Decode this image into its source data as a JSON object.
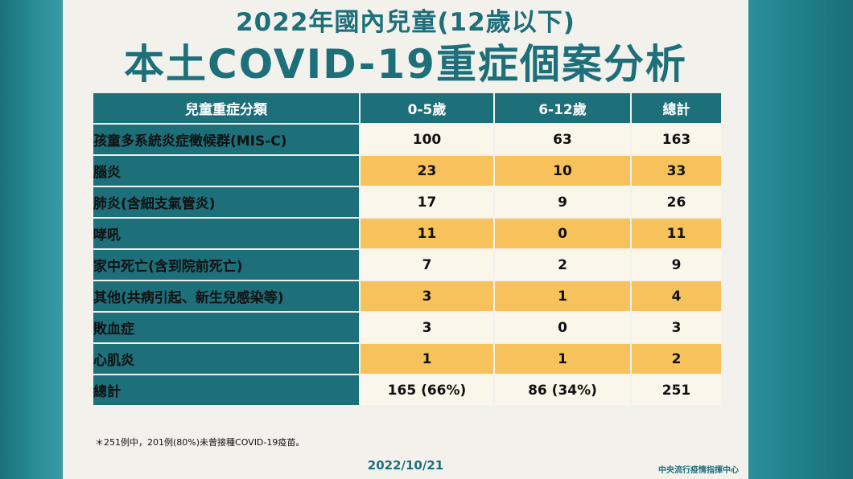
{
  "title_line1": "2022年國內兒童(12歲以下)",
  "title_line2": "本土COVID-19重症個案分析",
  "table": {
    "headers": [
      "兒童重症分類",
      "0-5歲",
      "6-12歲",
      "總計"
    ],
    "rows": [
      {
        "category": "孩童多系統炎症徵候群(MIS-C)",
        "age_0_5": "100",
        "age_6_12": "63",
        "total": "163"
      },
      {
        "category": "腦炎",
        "age_0_5": "23",
        "age_6_12": "10",
        "total": "33"
      },
      {
        "category": "肺炎(含細支氣管炎)",
        "age_0_5": "17",
        "age_6_12": "9",
        "total": "26"
      },
      {
        "category": "哮吼",
        "age_0_5": "11",
        "age_6_12": "0",
        "total": "11"
      },
      {
        "category": "家中死亡(含到院前死亡)",
        "age_0_5": "7",
        "age_6_12": "2",
        "total": "9"
      },
      {
        "category": "其他(共病引起、新生兒感染等)",
        "age_0_5": "3",
        "age_6_12": "1",
        "total": "4"
      },
      {
        "category": "敗血症",
        "age_0_5": "3",
        "age_6_12": "0",
        "total": "3"
      },
      {
        "category": "心肌炎",
        "age_0_5": "1",
        "age_6_12": "1",
        "total": "2"
      },
      {
        "category": "總計",
        "age_0_5": "165 (66%)",
        "age_6_12": "86 (34%)",
        "total": "251"
      }
    ]
  },
  "footnote": "＊251例中，201例(80%)未曾接種COVID-19疫苗。",
  "date": "2022/10/21",
  "agency": "中央流行疫情指揮中心",
  "colors": {
    "teal": "#1d6f7a",
    "row_light": "#fbf6ea",
    "row_dark": "#f7c25b",
    "background": "#f3f1ec"
  }
}
